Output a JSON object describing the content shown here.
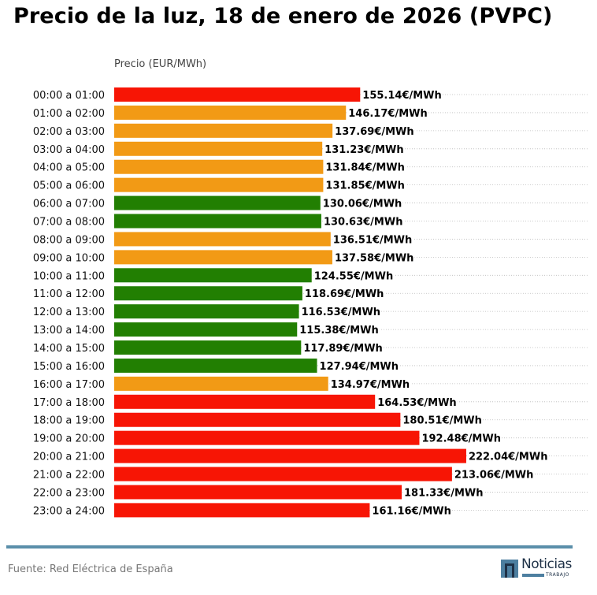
{
  "title": "Precio de la luz, 18 de enero de 2026 (PVPC)",
  "footer": {
    "source": "Fuente: Red Eléctrica de España",
    "logo_word": "Noticias",
    "logo_sub": "TRABAJO"
  },
  "colors": {
    "high": "#f71505",
    "medium": "#f29a15",
    "low": "#227f02",
    "grid": "#bbbbbb",
    "divider": "#5a8faa"
  },
  "chart_data": {
    "type": "bar",
    "orientation": "horizontal",
    "title": "Precio de la luz, 18 de enero de 2026 (PVPC)",
    "xlabel": "Precio (EUR/MWh)",
    "ylabel": "",
    "xlim": [
      0,
      300
    ],
    "grid": "dotted horizontal per row",
    "unit_suffix": "€/MWh",
    "categories": [
      "00:00 a 01:00",
      "01:00 a 02:00",
      "02:00 a 03:00",
      "03:00 a 04:00",
      "04:00 a 05:00",
      "05:00 a 06:00",
      "06:00 a 07:00",
      "07:00 a 08:00",
      "08:00 a 09:00",
      "09:00 a 10:00",
      "10:00 a 11:00",
      "11:00 a 12:00",
      "12:00 a 13:00",
      "13:00 a 14:00",
      "14:00 a 15:00",
      "15:00 a 16:00",
      "16:00 a 17:00",
      "17:00 a 18:00",
      "18:00 a 19:00",
      "19:00 a 20:00",
      "20:00 a 21:00",
      "21:00 a 22:00",
      "22:00 a 23:00",
      "23:00 a 24:00"
    ],
    "values": [
      155.14,
      146.17,
      137.69,
      131.23,
      131.84,
      131.85,
      130.06,
      130.63,
      136.51,
      137.58,
      124.55,
      118.69,
      116.53,
      115.38,
      117.89,
      127.94,
      134.97,
      164.53,
      180.51,
      192.48,
      222.04,
      213.06,
      181.33,
      161.16
    ],
    "labels": [
      "155.14€/MWh",
      "146.17€/MWh",
      "137.69€/MWh",
      "131.23€/MWh",
      "131.84€/MWh",
      "131.85€/MWh",
      "130.06€/MWh",
      "130.63€/MWh",
      "136.51€/MWh",
      "137.58€/MWh",
      "124.55€/MWh",
      "118.69€/MWh",
      "116.53€/MWh",
      "115.38€/MWh",
      "117.89€/MWh",
      "127.94€/MWh",
      "134.97€/MWh",
      "164.53€/MWh",
      "180.51€/MWh",
      "192.48€/MWh",
      "222.04€/MWh",
      "213.06€/MWh",
      "181.33€/MWh",
      "161.16€/MWh"
    ],
    "levels": [
      "high",
      "medium",
      "medium",
      "medium",
      "medium",
      "medium",
      "low",
      "low",
      "medium",
      "medium",
      "low",
      "low",
      "low",
      "low",
      "low",
      "low",
      "medium",
      "high",
      "high",
      "high",
      "high",
      "high",
      "high",
      "high"
    ]
  }
}
